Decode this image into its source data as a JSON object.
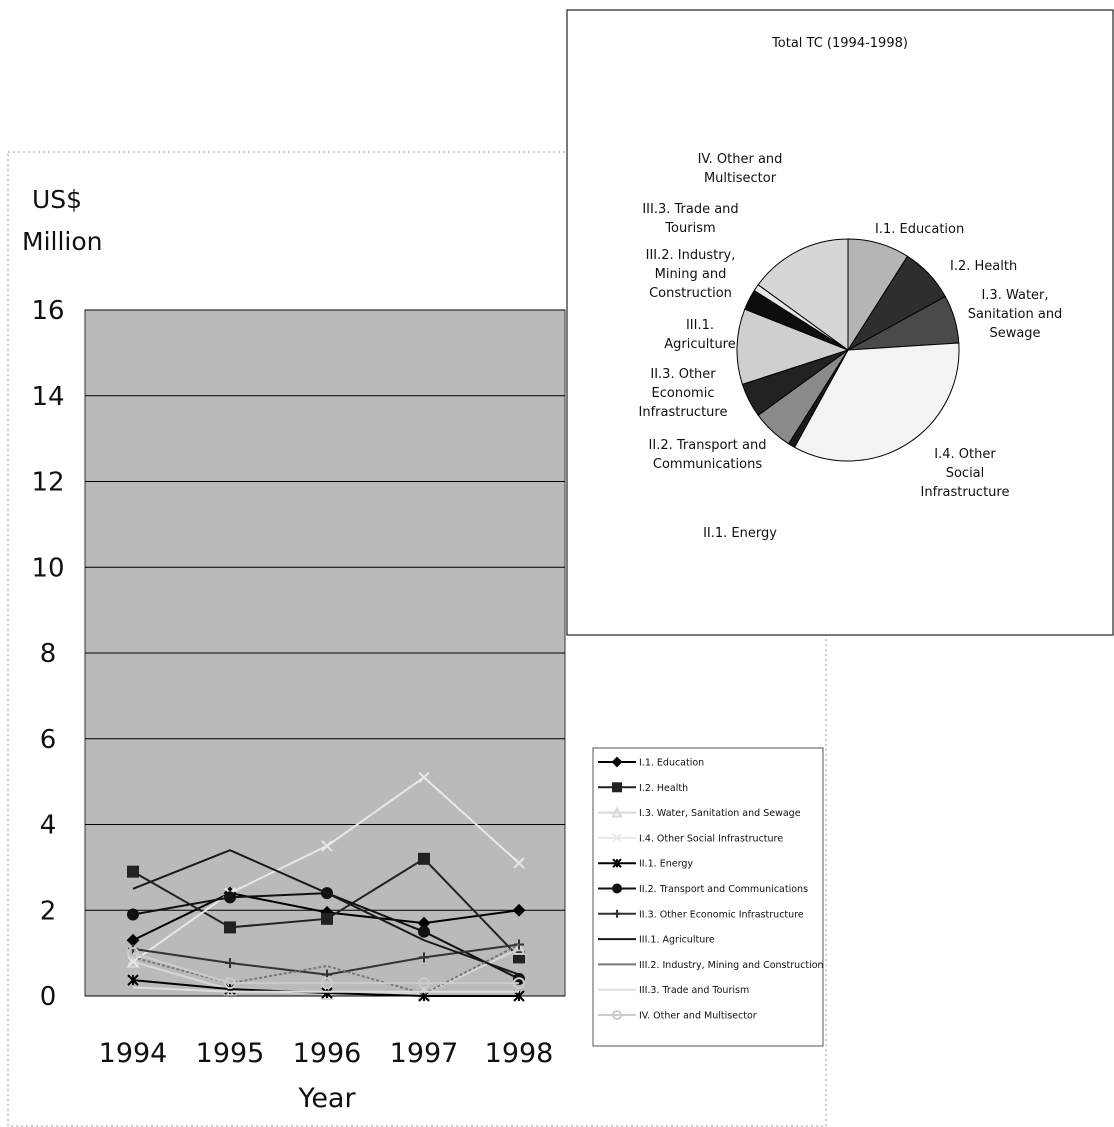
{
  "chart_data": [
    {
      "type": "line",
      "y_label": "US$ Million",
      "x_label": "Year",
      "categories": [
        "1994",
        "1995",
        "1996",
        "1997",
        "1998"
      ],
      "ylim": [
        0,
        16
      ],
      "yticks": [
        0,
        2,
        4,
        6,
        8,
        10,
        12,
        14,
        16
      ],
      "grid": true,
      "series": [
        {
          "name": "I.1. Education",
          "color": "#000000",
          "marker": "diamond",
          "values": [
            1.3,
            2.4,
            1.95,
            1.7,
            2.0
          ]
        },
        {
          "name": "I.2. Health",
          "color": "#222222",
          "marker": "square",
          "values": [
            2.9,
            1.6,
            1.8,
            3.2,
            0.9
          ]
        },
        {
          "name": "I.3. Water, Sanitation and Sewage",
          "color": "#d8d8d8",
          "marker": "triangle",
          "values": [
            0.8,
            0.15,
            0.05,
            0.05,
            1.1
          ]
        },
        {
          "name": "I.4. Other Social Infrastructure",
          "color": "#e8e8e8",
          "marker": "x",
          "values": [
            0.8,
            2.4,
            3.5,
            5.1,
            3.1
          ]
        },
        {
          "name": "II.1. Energy",
          "color": "#000000",
          "marker": "asterisk",
          "values": [
            0.37,
            0.16,
            0.07,
            0.0,
            0.0
          ]
        },
        {
          "name": "II.2. Transport and Communications",
          "color": "#111111",
          "marker": "circle",
          "values": [
            1.9,
            2.3,
            2.4,
            1.5,
            0.4
          ]
        },
        {
          "name": "II.3. Other Economic Infrastructure",
          "color": "#333333",
          "marker": "plus",
          "values": [
            1.1,
            0.77,
            0.5,
            0.9,
            1.2
          ]
        },
        {
          "name": "III.1. Agriculture",
          "color": "#1a1a1a",
          "marker": "none",
          "values": [
            2.5,
            3.4,
            2.4,
            1.3,
            0.5
          ]
        },
        {
          "name": "III.2. Industry, Mining and Construction",
          "color": "#777777",
          "marker": "none",
          "values": [
            0.9,
            0.3,
            0.7,
            0.05,
            1.2
          ]
        },
        {
          "name": "III.3. Trade and Tourism",
          "color": "#dddddd",
          "marker": "none",
          "values": [
            0.2,
            0.1,
            0.1,
            0.1,
            0.1
          ]
        },
        {
          "name": "IV. Other and Multisector",
          "color": "#cccccc",
          "marker": "circle-open",
          "values": [
            1.0,
            0.3,
            0.3,
            0.3,
            0.3
          ]
        }
      ]
    },
    {
      "type": "pie",
      "title": "Total TC (1994-1998)",
      "categories": [
        "I.1. Education",
        "I.2. Health",
        "I.3. Water, Sanitation and Sewage",
        "I.4. Other Social Infrastructure",
        "II.1. Energy",
        "II.2. Transport and Communications",
        "II.3. Other Economic Infrastructure",
        "III.1. Agriculture",
        "III.2. Industry, Mining and Construction",
        "III.3. Trade and Tourism",
        "IV. Other and Multisector"
      ],
      "values": [
        9,
        8,
        7,
        34,
        1,
        6,
        5,
        11,
        3,
        1,
        15
      ],
      "colors": [
        "#b5b5b5",
        "#2e2e2e",
        "#4a4a4a",
        "#f3f3f3",
        "#1a1a1a",
        "#8a8a8a",
        "#222222",
        "#cfcfcf",
        "#0d0d0d",
        "#e6e6e6",
        "#d6d6d6"
      ]
    }
  ]
}
